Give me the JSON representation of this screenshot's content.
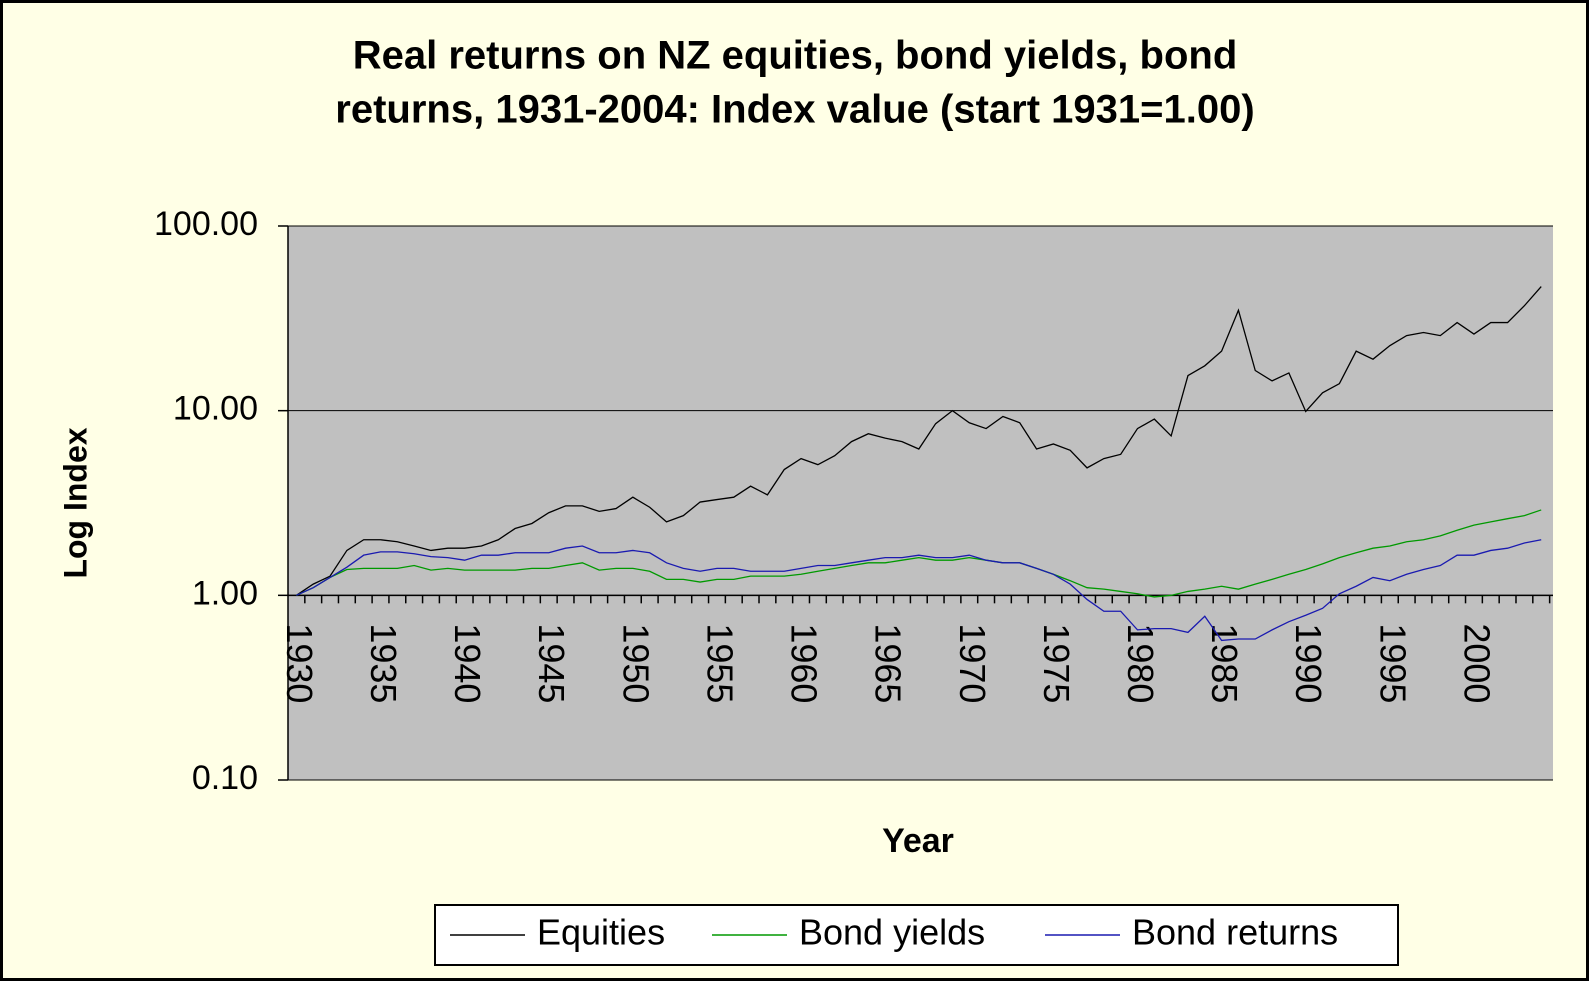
{
  "chart_data": {
    "type": "line",
    "title": [
      "Real returns on NZ equities, bond yields, bond",
      "returns, 1931-2004: Index value (start 1931=1.00)"
    ],
    "x_label": "Year",
    "y_label": "Log Index",
    "x": [
      1930,
      1931,
      1932,
      1933,
      1934,
      1935,
      1936,
      1937,
      1938,
      1939,
      1940,
      1941,
      1942,
      1943,
      1944,
      1945,
      1946,
      1947,
      1948,
      1949,
      1950,
      1951,
      1952,
      1953,
      1954,
      1955,
      1956,
      1957,
      1958,
      1959,
      1960,
      1961,
      1962,
      1963,
      1964,
      1965,
      1966,
      1967,
      1968,
      1969,
      1970,
      1971,
      1972,
      1973,
      1974,
      1975,
      1976,
      1977,
      1978,
      1979,
      1980,
      1981,
      1982,
      1983,
      1984,
      1985,
      1986,
      1987,
      1988,
      1989,
      1990,
      1991,
      1992,
      1993,
      1994,
      1995,
      1996,
      1997,
      1998,
      1999,
      2000,
      2001,
      2002,
      2003,
      2004
    ],
    "xlim": [
      1929.5,
      2004.7
    ],
    "xticks": [
      1930,
      1935,
      1940,
      1945,
      1950,
      1955,
      1960,
      1965,
      1970,
      1975,
      1980,
      1985,
      1990,
      1995,
      2000
    ],
    "ylim": [
      0.1,
      100
    ],
    "yticks": [
      {
        "value": 0.1,
        "label": "0.10"
      },
      {
        "value": 1,
        "label": "1.00"
      },
      {
        "value": 10,
        "label": "10.00"
      },
      {
        "value": 100,
        "label": "100.00"
      }
    ],
    "log_y": true,
    "grid": true,
    "legend": "bottom",
    "series": [
      {
        "name": "Equities",
        "color": "#000000",
        "values": [
          1.0,
          1.15,
          1.27,
          1.75,
          2.0,
          2.0,
          1.95,
          1.85,
          1.75,
          1.8,
          1.8,
          1.85,
          2.0,
          2.3,
          2.45,
          2.8,
          3.05,
          3.05,
          2.85,
          2.95,
          3.4,
          3.0,
          2.5,
          2.7,
          3.2,
          3.3,
          3.4,
          3.9,
          3.5,
          4.8,
          5.5,
          5.1,
          5.7,
          6.8,
          7.5,
          7.1,
          6.8,
          6.2,
          8.5,
          10.0,
          8.6,
          8.0,
          9.3,
          8.6,
          6.2,
          6.6,
          6.1,
          4.9,
          5.5,
          5.8,
          8.0,
          9.0,
          7.3,
          15.5,
          17.5,
          21,
          35,
          16.5,
          14.5,
          16,
          9.9,
          12.5,
          14,
          21,
          19,
          22.5,
          25.5,
          26.5,
          25.5,
          30,
          26,
          30,
          30,
          37,
          47
        ]
      },
      {
        "name": "Bond yields",
        "color": "#009900",
        "values": [
          1.0,
          1.1,
          1.25,
          1.38,
          1.4,
          1.4,
          1.4,
          1.45,
          1.37,
          1.4,
          1.37,
          1.37,
          1.37,
          1.37,
          1.4,
          1.4,
          1.45,
          1.5,
          1.37,
          1.4,
          1.4,
          1.35,
          1.22,
          1.22,
          1.18,
          1.22,
          1.22,
          1.27,
          1.27,
          1.27,
          1.3,
          1.35,
          1.4,
          1.45,
          1.5,
          1.5,
          1.55,
          1.6,
          1.55,
          1.55,
          1.6,
          1.55,
          1.5,
          1.5,
          1.4,
          1.3,
          1.2,
          1.1,
          1.08,
          1.05,
          1.02,
          0.98,
          1.0,
          1.05,
          1.08,
          1.12,
          1.08,
          1.15,
          1.22,
          1.3,
          1.38,
          1.48,
          1.6,
          1.7,
          1.8,
          1.85,
          1.95,
          2.0,
          2.1,
          2.25,
          2.4,
          2.5,
          2.6,
          2.7,
          2.9
        ]
      },
      {
        "name": "Bond returns",
        "color": "#1a1ab0",
        "values": [
          1.0,
          1.1,
          1.25,
          1.42,
          1.65,
          1.72,
          1.72,
          1.68,
          1.62,
          1.6,
          1.55,
          1.65,
          1.65,
          1.7,
          1.7,
          1.7,
          1.8,
          1.85,
          1.7,
          1.7,
          1.75,
          1.7,
          1.5,
          1.4,
          1.35,
          1.4,
          1.4,
          1.35,
          1.35,
          1.35,
          1.4,
          1.45,
          1.45,
          1.5,
          1.55,
          1.6,
          1.6,
          1.65,
          1.6,
          1.6,
          1.65,
          1.55,
          1.5,
          1.5,
          1.4,
          1.3,
          1.15,
          0.95,
          0.82,
          0.82,
          0.65,
          0.66,
          0.66,
          0.63,
          0.77,
          0.57,
          0.58,
          0.58,
          0.65,
          0.72,
          0.78,
          0.85,
          1.02,
          1.12,
          1.25,
          1.2,
          1.3,
          1.38,
          1.45,
          1.65,
          1.65,
          1.75,
          1.8,
          1.92,
          2.0
        ]
      }
    ]
  }
}
